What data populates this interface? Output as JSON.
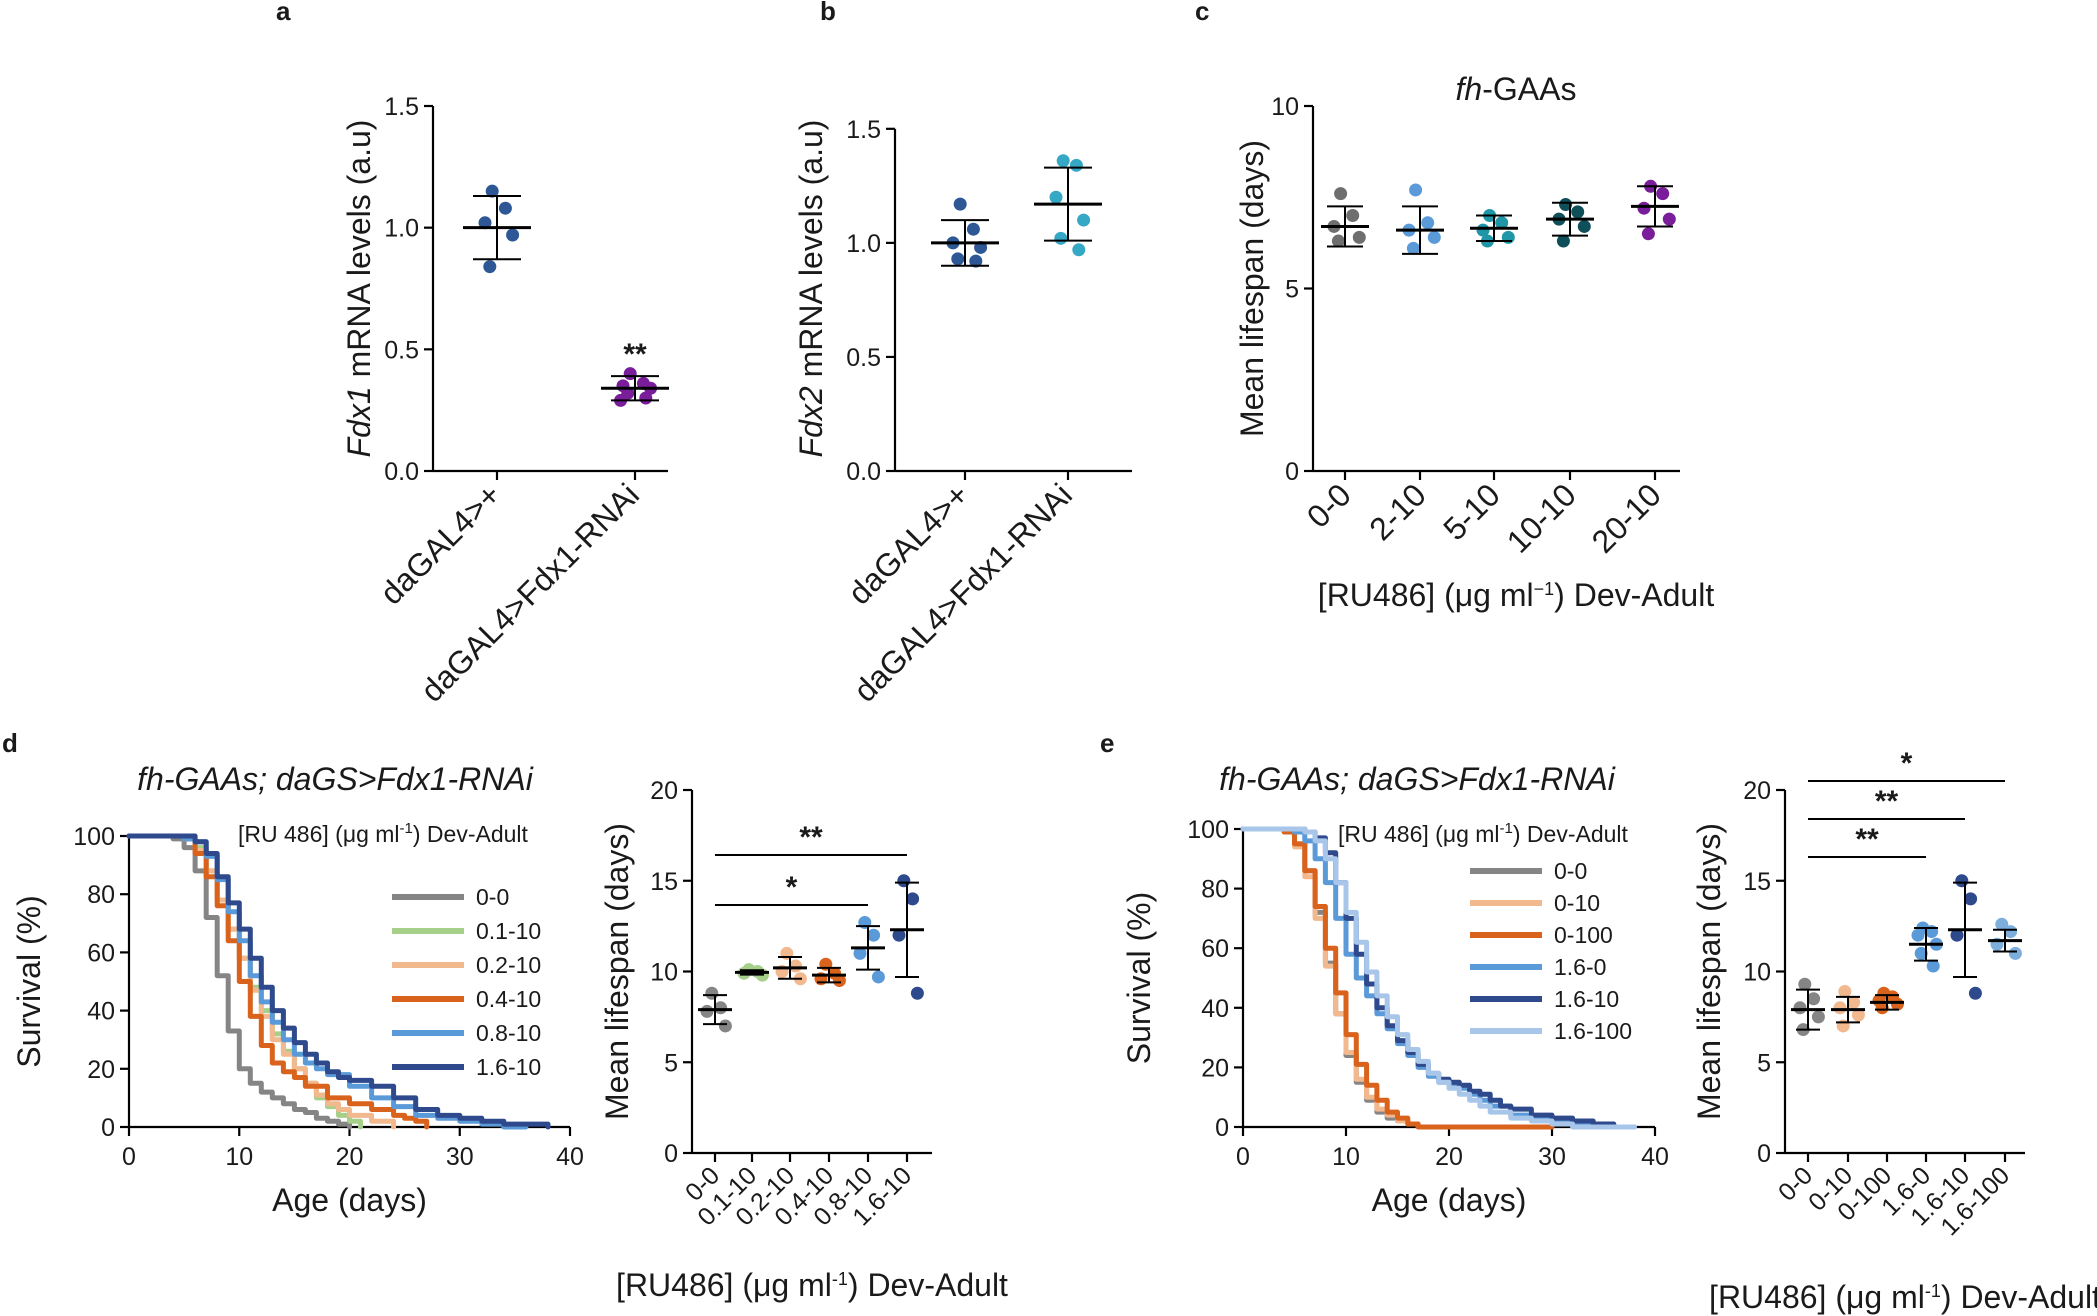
{
  "chart_data": [
    {
      "id": "a",
      "panel": "a",
      "type": "scatter",
      "ylabel_italic": "Fdx1",
      "ylabel_rest": " mRNA levels (a.u)",
      "ylim": [
        0,
        1.5
      ],
      "yticks": [
        "0.0",
        "0.5",
        "1.0",
        "1.5"
      ],
      "categories": [
        "daGAL4>+",
        "daGAL4>Fdx1-RNAi"
      ],
      "groups": [
        {
          "label": "daGAL4>+",
          "color": "#2e5796",
          "points": [
            1.15,
            1.08,
            1.02,
            0.97,
            0.84
          ],
          "mean": 1.0,
          "sd": 0.13,
          "sig": ""
        },
        {
          "label": "daGAL4>Fdx1-RNAi",
          "color": "#7a1d9a",
          "points": [
            0.4,
            0.36,
            0.35,
            0.34,
            0.32,
            0.3,
            0.29
          ],
          "mean": 0.34,
          "sd": 0.05,
          "sig": "**"
        }
      ]
    },
    {
      "id": "b",
      "panel": "b",
      "type": "scatter",
      "ylabel_italic": "Fdx2",
      "ylabel_rest": " mRNA levels (a.u)",
      "ylim": [
        0,
        1.6
      ],
      "yticks": [
        "0.0",
        "0.5",
        "1.0",
        "1.5"
      ],
      "categories": [
        "daGAL4>+",
        "daGAL4>Fdx1-RNAi"
      ],
      "groups": [
        {
          "label": "daGAL4>+",
          "color": "#2e5796",
          "points": [
            1.17,
            1.06,
            1.0,
            0.98,
            0.93,
            0.92
          ],
          "mean": 1.0,
          "sd": 0.1,
          "sig": ""
        },
        {
          "label": "daGAL4>Fdx1-RNAi",
          "color": "#35a8c6",
          "points": [
            1.36,
            1.34,
            1.2,
            1.1,
            1.02,
            0.97
          ],
          "mean": 1.17,
          "sd": 0.16,
          "sig": ""
        }
      ]
    },
    {
      "id": "c",
      "panel": "c",
      "type": "scatter",
      "title_italic": "fh",
      "title_rest": "-GAAs",
      "ylabel": "Mean lifespan (days)",
      "xlabel_pre": "[RU486] (μg ml",
      "xlabel_sup": "−1",
      "xlabel_post": ") Dev-Adult",
      "ylim": [
        0,
        10
      ],
      "yticks": [
        "0",
        "5",
        "10"
      ],
      "categories": [
        "0-0",
        "2-10",
        "5-10",
        "10-10",
        "20-10"
      ],
      "groups": [
        {
          "label": "0-0",
          "color": "#6e6e6e",
          "points": [
            7.6,
            7.0,
            6.7,
            6.4,
            6.3
          ],
          "mean": 6.7,
          "sd": 0.55
        },
        {
          "label": "2-10",
          "color": "#5a9ad8",
          "points": [
            7.7,
            6.8,
            6.6,
            6.4,
            6.1
          ],
          "mean": 6.6,
          "sd": 0.65
        },
        {
          "label": "5-10",
          "color": "#1e96a8",
          "points": [
            7.0,
            6.8,
            6.6,
            6.4,
            6.3
          ],
          "mean": 6.65,
          "sd": 0.35
        },
        {
          "label": "10-10",
          "color": "#0f4f5a",
          "points": [
            7.3,
            7.1,
            6.9,
            6.7,
            6.3
          ],
          "mean": 6.9,
          "sd": 0.45
        },
        {
          "label": "20-10",
          "color": "#7a1d9a",
          "points": [
            7.8,
            7.6,
            7.2,
            6.9,
            6.5
          ],
          "mean": 7.25,
          "sd": 0.55
        }
      ]
    },
    {
      "id": "d-surv",
      "panel": "d",
      "type": "line",
      "title": "fh-GAAs; daGS>Fdx1-RNAi",
      "legend_title_pre": "[RU 486] (μg ml",
      "legend_title_sup": "-1",
      "legend_title_post": ") Dev-Adult",
      "xlabel": "Age (days)",
      "ylabel": "Survival (%)",
      "xlim": [
        0,
        40
      ],
      "ylim": [
        0,
        100
      ],
      "xticks": [
        "0",
        "10",
        "20",
        "30",
        "40"
      ],
      "yticks": [
        "0",
        "20",
        "40",
        "60",
        "80",
        "100"
      ],
      "series": [
        {
          "name": "0-0",
          "color": "#858585",
          "x": [
            0,
            4,
            5,
            6,
            7,
            8,
            9,
            10,
            11,
            12,
            13,
            14,
            15,
            16,
            17,
            18,
            19,
            20
          ],
          "y": [
            100,
            99,
            96,
            88,
            72,
            52,
            33,
            20,
            15,
            12,
            10,
            8,
            6,
            5,
            3,
            2,
            1,
            0
          ]
        },
        {
          "name": "0.1-10",
          "color": "#a6d08a",
          "x": [
            0,
            5,
            6,
            7,
            8,
            9,
            10,
            11,
            12,
            13,
            14,
            15,
            16,
            17,
            18,
            19,
            20,
            21
          ],
          "y": [
            100,
            99,
            96,
            88,
            78,
            68,
            58,
            48,
            40,
            32,
            26,
            20,
            15,
            10,
            7,
            4,
            2,
            0
          ]
        },
        {
          "name": "0.2-10",
          "color": "#f2b88e",
          "x": [
            0,
            5,
            6,
            7,
            8,
            9,
            10,
            11,
            12,
            13,
            14,
            15,
            16,
            17,
            18,
            19,
            20,
            22,
            24
          ],
          "y": [
            100,
            99,
            95,
            88,
            78,
            68,
            58,
            47,
            38,
            30,
            25,
            20,
            15,
            11,
            8,
            6,
            4,
            2,
            0
          ]
        },
        {
          "name": "0.4-10",
          "color": "#d9621c",
          "x": [
            0,
            5,
            6,
            7,
            8,
            9,
            10,
            11,
            12,
            13,
            14,
            15,
            16,
            18,
            20,
            22,
            24,
            25,
            26,
            27
          ],
          "y": [
            100,
            99,
            94,
            86,
            76,
            64,
            50,
            38,
            28,
            22,
            19,
            17,
            14,
            10,
            8,
            6,
            4,
            3,
            2,
            0
          ]
        },
        {
          "name": "0.8-10",
          "color": "#5a9ad8",
          "x": [
            0,
            5,
            6,
            7,
            8,
            9,
            10,
            11,
            12,
            13,
            14,
            15,
            16,
            17,
            18,
            20,
            22,
            24,
            26,
            28,
            30,
            32,
            34,
            36
          ],
          "y": [
            100,
            99,
            98,
            93,
            85,
            74,
            64,
            52,
            43,
            36,
            30,
            25,
            22,
            20,
            18,
            14,
            10,
            7,
            4,
            3,
            2,
            1,
            0,
            0
          ]
        },
        {
          "name": "1.6-10",
          "color": "#2e4a8c",
          "x": [
            0,
            6,
            7,
            8,
            9,
            10,
            11,
            12,
            13,
            14,
            15,
            16,
            17,
            18,
            19,
            20,
            21,
            22,
            24,
            26,
            28,
            30,
            32,
            34,
            36,
            38
          ],
          "y": [
            100,
            98,
            94,
            86,
            77,
            68,
            58,
            48,
            40,
            34,
            29,
            25,
            22,
            19,
            17,
            16,
            16,
            14,
            10,
            6,
            4,
            3,
            2,
            1,
            1,
            0
          ]
        }
      ]
    },
    {
      "id": "d-mean",
      "panel": "d",
      "type": "scatter",
      "ylabel": "Mean lifespan (days)",
      "xlabel_pre": "[RU486] (μg ml",
      "xlabel_sup": "-1",
      "xlabel_post": ") Dev-Adult",
      "ylim": [
        0,
        20
      ],
      "yticks": [
        "0",
        "5",
        "10",
        "15",
        "20"
      ],
      "categories": [
        "0-0",
        "0.1-10",
        "0.2-10",
        "0.4-10",
        "0.8-10",
        "1.6-10"
      ],
      "groups": [
        {
          "label": "0-0",
          "color": "#858585",
          "points": [
            8.8,
            8.0,
            7.8,
            7.0
          ],
          "mean": 7.9,
          "sd": 0.8
        },
        {
          "label": "0.1-10",
          "color": "#a6d08a",
          "points": [
            10.1,
            10.0,
            9.9,
            9.8
          ],
          "mean": 9.95,
          "sd": 0.12
        },
        {
          "label": "0.2-10",
          "color": "#f2b88e",
          "points": [
            11.0,
            10.3,
            10.0,
            9.6
          ],
          "mean": 10.2,
          "sd": 0.6
        },
        {
          "label": "0.4-10",
          "color": "#d9621c",
          "points": [
            10.4,
            9.9,
            9.6,
            9.5
          ],
          "mean": 9.8,
          "sd": 0.4
        },
        {
          "label": "0.8-10",
          "color": "#5a9ad8",
          "points": [
            12.7,
            12.0,
            11.0,
            9.7
          ],
          "mean": 11.3,
          "sd": 1.2
        },
        {
          "label": "1.6-10",
          "color": "#2e4a8c",
          "points": [
            15.0,
            14.0,
            12.0,
            8.8
          ],
          "mean": 12.3,
          "sd": 2.6
        }
      ],
      "brackets": [
        {
          "from": 0,
          "to": 5,
          "label": "**",
          "level": 1
        },
        {
          "from": 0,
          "to": 4,
          "label": "*",
          "level": 0
        }
      ]
    },
    {
      "id": "e-surv",
      "panel": "e",
      "type": "line",
      "title": "fh-GAAs; daGS>Fdx1-RNAi",
      "legend_title_pre": "[RU 486] (μg ml",
      "legend_title_sup": "-1",
      "legend_title_post": ") Dev-Adult",
      "xlabel": "Age (days)",
      "ylabel": "Survival (%)",
      "xlim": [
        0,
        40
      ],
      "ylim": [
        0,
        100
      ],
      "xticks": [
        "0",
        "10",
        "20",
        "30",
        "40"
      ],
      "yticks": [
        "0",
        "20",
        "40",
        "60",
        "80",
        "100"
      ],
      "series": [
        {
          "name": "0-0",
          "color": "#858585",
          "x": [
            0,
            4,
            5,
            6,
            7,
            8,
            9,
            10,
            11,
            12,
            13,
            14,
            15,
            16,
            17,
            18
          ],
          "y": [
            100,
            99,
            95,
            86,
            72,
            55,
            38,
            24,
            15,
            9,
            5,
            3,
            2,
            1,
            0,
            0
          ]
        },
        {
          "name": "0-10",
          "color": "#f2b88e",
          "x": [
            0,
            4,
            5,
            6,
            7,
            8,
            9,
            10,
            11,
            12,
            13,
            14,
            15,
            16,
            17,
            18
          ],
          "y": [
            100,
            99,
            94,
            84,
            70,
            54,
            38,
            25,
            16,
            10,
            6,
            4,
            2,
            1,
            0,
            0
          ]
        },
        {
          "name": "0-100",
          "color": "#d9621c",
          "x": [
            0,
            4,
            5,
            6,
            7,
            8,
            9,
            10,
            11,
            12,
            13,
            14,
            15,
            16,
            17,
            18,
            20,
            25,
            30
          ],
          "y": [
            100,
            99,
            95,
            86,
            74,
            60,
            45,
            31,
            21,
            14,
            9,
            5,
            3,
            1,
            0,
            0,
            0,
            0,
            0
          ]
        },
        {
          "name": "1.6-0",
          "color": "#5a9ad8",
          "x": [
            0,
            5,
            6,
            7,
            8,
            9,
            10,
            11,
            12,
            13,
            14,
            15,
            16,
            17,
            18,
            19,
            20,
            21,
            22,
            23,
            24,
            26,
            28,
            30,
            32,
            34,
            36,
            38
          ],
          "y": [
            100,
            99,
            96,
            90,
            82,
            70,
            58,
            50,
            44,
            38,
            33,
            28,
            24,
            20,
            17,
            15,
            14,
            13,
            11,
            9,
            7,
            4,
            3,
            2,
            1,
            0,
            0,
            0
          ]
        },
        {
          "name": "1.6-10",
          "color": "#2e4a8c",
          "x": [
            0,
            6,
            7,
            8,
            9,
            10,
            11,
            12,
            13,
            14,
            15,
            16,
            17,
            18,
            19,
            20,
            21,
            22,
            23,
            24,
            25,
            26,
            28,
            30,
            32,
            34,
            36
          ],
          "y": [
            100,
            99,
            97,
            92,
            82,
            70,
            58,
            48,
            40,
            34,
            29,
            25,
            21,
            18,
            16,
            15,
            14,
            12,
            11,
            9,
            7,
            6,
            4,
            3,
            2,
            1,
            0
          ]
        },
        {
          "name": "1.6-100",
          "color": "#a8c6ea",
          "x": [
            0,
            6,
            7,
            8,
            9,
            10,
            11,
            12,
            13,
            14,
            15,
            16,
            17,
            18,
            19,
            20,
            21,
            22,
            23,
            24,
            26,
            28,
            30,
            32,
            34,
            36,
            38
          ],
          "y": [
            100,
            99,
            96,
            90,
            82,
            72,
            62,
            52,
            44,
            37,
            31,
            26,
            22,
            18,
            15,
            13,
            11,
            9,
            7,
            5,
            3,
            2,
            1,
            0,
            0,
            0,
            0
          ]
        }
      ]
    },
    {
      "id": "e-mean",
      "panel": "e",
      "type": "scatter",
      "ylabel": "Mean lifespan (days)",
      "xlabel_pre": "[RU486] (μg ml",
      "xlabel_sup": "-1",
      "xlabel_post": ") Dev-Adult",
      "ylim": [
        0,
        20
      ],
      "yticks": [
        "0",
        "5",
        "10",
        "15",
        "20"
      ],
      "categories": [
        "0-0",
        "0-10",
        "0-100",
        "1.6-0",
        "1.6-10",
        "1.6-100"
      ],
      "groups": [
        {
          "label": "0-0",
          "color": "#858585",
          "points": [
            9.3,
            8.5,
            8.0,
            7.5,
            6.8
          ],
          "mean": 7.9,
          "sd": 1.1
        },
        {
          "label": "0-10",
          "color": "#f2b88e",
          "points": [
            8.9,
            8.3,
            8.0,
            7.6,
            7.0
          ],
          "mean": 7.9,
          "sd": 0.7
        },
        {
          "label": "0-100",
          "color": "#d9621c",
          "points": [
            8.8,
            8.6,
            8.4,
            8.2,
            8.0
          ],
          "mean": 8.3,
          "sd": 0.4
        },
        {
          "label": "1.6-0",
          "color": "#5a9ad8",
          "points": [
            12.4,
            12.2,
            12.0,
            11.5,
            11.0,
            10.3
          ],
          "mean": 11.5,
          "sd": 0.9
        },
        {
          "label": "1.6-10",
          "color": "#2e4a8c",
          "points": [
            15.0,
            14.0,
            12.0,
            8.8
          ],
          "mean": 12.3,
          "sd": 2.6
        },
        {
          "label": "1.6-100",
          "color": "#7eaedc",
          "points": [
            12.6,
            12.2,
            11.5,
            11.0
          ],
          "mean": 11.7,
          "sd": 0.6
        }
      ],
      "brackets": [
        {
          "from": 0,
          "to": 5,
          "label": "*",
          "level": 2
        },
        {
          "from": 0,
          "to": 4,
          "label": "**",
          "level": 1
        },
        {
          "from": 0,
          "to": 3,
          "label": "**",
          "level": 0
        }
      ]
    }
  ]
}
